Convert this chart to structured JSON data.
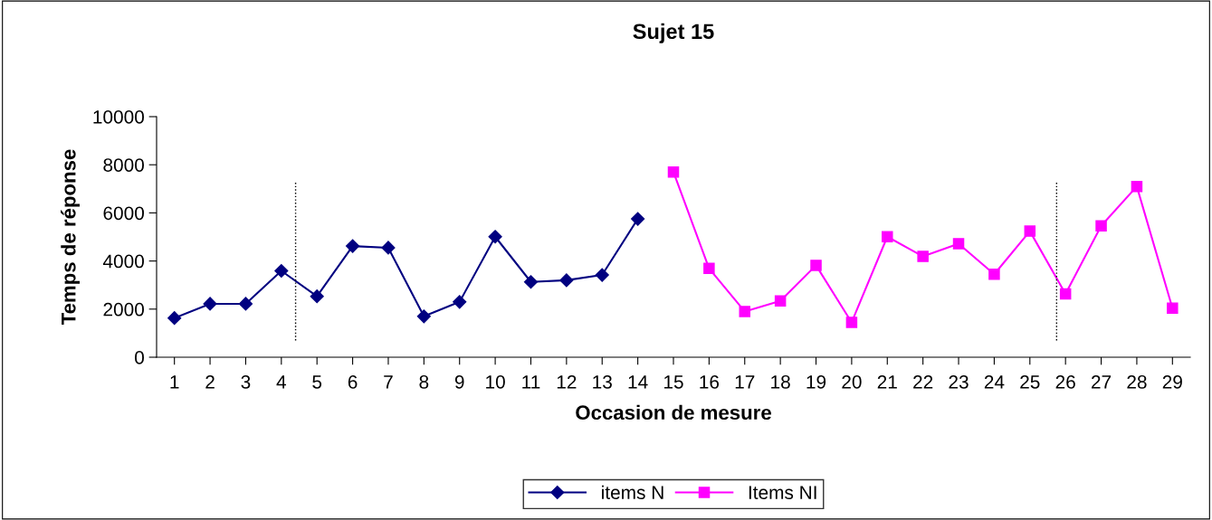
{
  "chart_data": {
    "type": "line",
    "title": "Sujet 15",
    "xlabel": "Occasion de mesure",
    "ylabel": "Temps de réponse",
    "xlim": [
      0.5,
      29.5
    ],
    "xticks": [
      1,
      2,
      3,
      4,
      5,
      6,
      7,
      8,
      9,
      10,
      11,
      12,
      13,
      14,
      15,
      16,
      17,
      18,
      19,
      20,
      21,
      22,
      23,
      24,
      25,
      26,
      27,
      28,
      29
    ],
    "ylim": [
      0,
      10000
    ],
    "yticks": [
      0,
      2000,
      4000,
      6000,
      8000,
      10000
    ],
    "grid": false,
    "legend": "bottom",
    "line_style": "solid",
    "series": [
      {
        "name": "items N",
        "color": "#000080",
        "marker": "diamond",
        "x": [
          1,
          2,
          3,
          4,
          5,
          6,
          7,
          8,
          9,
          10,
          11,
          12,
          13,
          14
        ],
        "values": [
          1630,
          2220,
          2220,
          3590,
          2530,
          4620,
          4550,
          1700,
          2300,
          5010,
          3130,
          3200,
          3420,
          5750
        ]
      },
      {
        "name": "Items NI",
        "color": "#ff00ff",
        "marker": "square",
        "x": [
          15,
          16,
          17,
          18,
          19,
          20,
          21,
          22,
          23,
          24,
          25,
          26,
          27,
          28,
          29
        ],
        "values": [
          7700,
          3690,
          1900,
          2340,
          3820,
          1450,
          5010,
          4190,
          4720,
          3450,
          5240,
          2630,
          5460,
          7100,
          2040
        ]
      }
    ],
    "ref_lines": [
      {
        "axis": "x",
        "value": 4.4,
        "color": "#000000",
        "line_style": "dotted"
      },
      {
        "axis": "x",
        "value": 25.75,
        "color": "#000000",
        "line_style": "dotted"
      }
    ]
  }
}
